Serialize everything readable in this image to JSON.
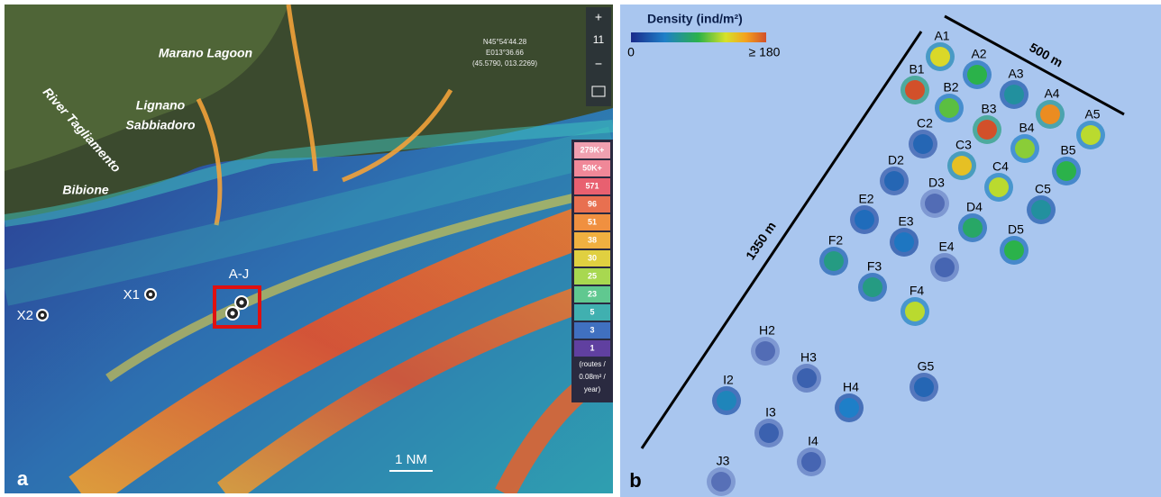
{
  "panel_a": {
    "label": "a",
    "places": [
      "Marano Lagoon",
      "Bibione"
    ],
    "lignano": [
      "Lignano",
      "Sabbiadoro"
    ],
    "river": "River Tagliamento",
    "sites": [
      "A-J",
      "X1",
      "X2"
    ],
    "scale_bar": "1 NM",
    "zoom": "11",
    "coordinates": [
      "N45°54'44.28",
      "E013°36.66",
      "(45.5790, 013.2269)"
    ],
    "legend": {
      "labels": [
        "279K+",
        "50K+",
        "571",
        "96",
        "51",
        "38",
        "30",
        "25",
        "23",
        "5",
        "3",
        "1"
      ],
      "unit": [
        "(routes /",
        "0.08m² /",
        "year)"
      ]
    }
  },
  "panel_b": {
    "label": "b",
    "colorbar": {
      "title": "Density (ind/m²)",
      "min": 0,
      "max": {
        "value": 180,
        "label": "≥ 180"
      }
    },
    "dimensions": [
      "500 m",
      "1350 m"
    ],
    "stations": [
      {
        "name": "A1",
        "density": 130
      },
      {
        "name": "A2",
        "density": 90
      },
      {
        "name": "A3",
        "density": 60
      },
      {
        "name": "A4",
        "density": 160
      },
      {
        "name": "A5",
        "density": 120
      },
      {
        "name": "B1",
        "density": 180
      },
      {
        "name": "B2",
        "density": 100
      },
      {
        "name": "B3",
        "density": 180
      },
      {
        "name": "B4",
        "density": 110
      },
      {
        "name": "B5",
        "density": 90
      },
      {
        "name": "C2",
        "density": 30
      },
      {
        "name": "C3",
        "density": 140
      },
      {
        "name": "C4",
        "density": 120
      },
      {
        "name": "C5",
        "density": 60
      },
      {
        "name": "D2",
        "density": 30
      },
      {
        "name": "D3",
        "density": 5
      },
      {
        "name": "D4",
        "density": 80
      },
      {
        "name": "D5",
        "density": 90
      },
      {
        "name": "E2",
        "density": 35
      },
      {
        "name": "E3",
        "density": 40
      },
      {
        "name": "E4",
        "density": 10
      },
      {
        "name": "F2",
        "density": 70
      },
      {
        "name": "F3",
        "density": 70
      },
      {
        "name": "F4",
        "density": 120
      },
      {
        "name": "G5",
        "density": 30
      },
      {
        "name": "H2",
        "density": 5
      },
      {
        "name": "H3",
        "density": 15
      },
      {
        "name": "H4",
        "density": 45
      },
      {
        "name": "I2",
        "density": 50
      },
      {
        "name": "I3",
        "density": 15
      },
      {
        "name": "I4",
        "density": 10
      },
      {
        "name": "J3",
        "density": 3
      }
    ]
  }
}
